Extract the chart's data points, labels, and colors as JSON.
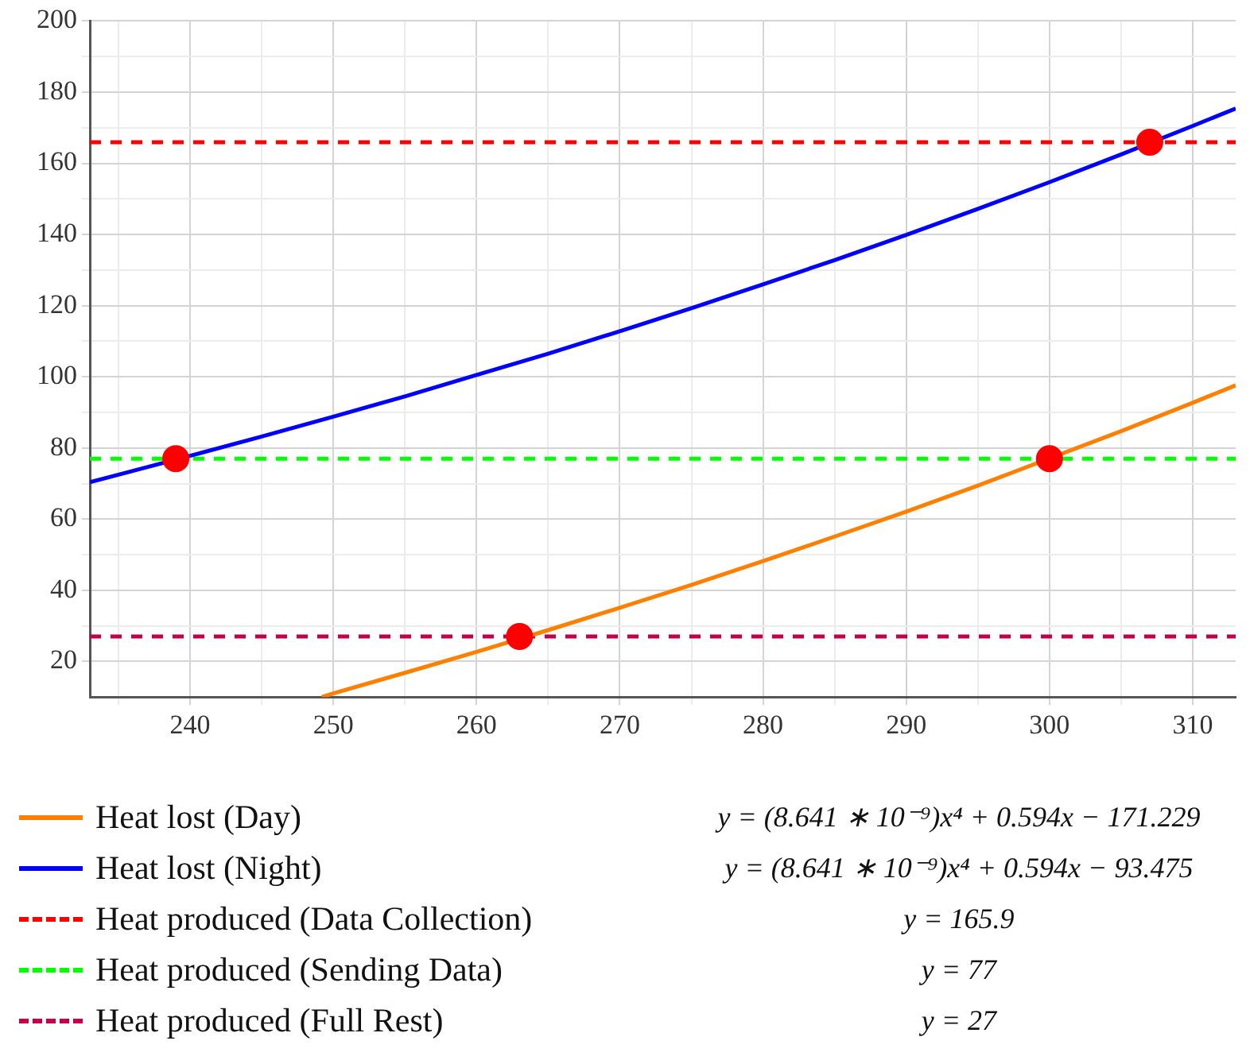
{
  "chart_data": {
    "type": "line",
    "xlim": [
      233,
      313
    ],
    "ylim": [
      10,
      200
    ],
    "xticks": [
      {
        "value": 235,
        "label": null
      },
      240,
      {
        "value": 245,
        "label": null
      },
      250,
      {
        "value": 255,
        "label": null
      },
      260,
      {
        "value": 265,
        "label": null
      },
      270,
      {
        "value": 275,
        "label": null
      },
      280,
      {
        "value": 285,
        "label": null
      },
      290,
      {
        "value": 295,
        "label": null
      },
      300,
      {
        "value": 305,
        "label": null
      },
      310
    ],
    "yticks": [
      20,
      {
        "value": 30,
        "label": null
      },
      40,
      {
        "value": 50,
        "label": null
      },
      60,
      {
        "value": 70,
        "label": null
      },
      80,
      {
        "value": 90,
        "label": null
      },
      100,
      {
        "value": 110,
        "label": null
      },
      120,
      {
        "value": 130,
        "label": null
      },
      140,
      {
        "value": 150,
        "label": null
      },
      160,
      {
        "value": 170,
        "label": null
      },
      180,
      {
        "value": 190,
        "label": null
      },
      200
    ],
    "grid": true,
    "legend": "bottom",
    "marker": "none",
    "series": [
      {
        "name": "Heat lost (Day)",
        "color": "#ff8000",
        "line_style": "solid",
        "x": [
          249.2,
          250,
          255,
          260,
          265,
          270,
          275,
          280,
          285,
          290,
          295,
          305,
          310,
          313
        ],
        "values": [
          10.0,
          11.0,
          16.8,
          22.7,
          28.8,
          35.1,
          41.5,
          48.2,
          55.1,
          62.1,
          69.4,
          84.7,
          92.7,
          97.6
        ]
      },
      {
        "name": "Heat lost (Night)",
        "color": "#0000ff",
        "line_style": "solid",
        "x": [
          233,
          235,
          240,
          245,
          250,
          255,
          260,
          265,
          270,
          275,
          280,
          285,
          290,
          295,
          300,
          305,
          310,
          313
        ],
        "values": [
          70.4,
          72.5,
          77.8,
          83.2,
          88.8,
          94.5,
          100.5,
          106.5,
          112.8,
          119.3,
          126.0,
          132.8,
          139.9,
          147.2,
          154.7,
          162.5,
          170.5,
          175.4
        ]
      },
      {
        "name": "Heat produced (Data Collection)",
        "color": "#ff0000",
        "line_style": "dashed",
        "x": [
          233,
          313
        ],
        "values": [
          165.9,
          165.9
        ]
      },
      {
        "name": "Heat produced (Sending Data)",
        "color": "#00ff00",
        "line_style": "dashed",
        "x": [
          233,
          313
        ],
        "values": [
          77,
          77
        ]
      },
      {
        "name": "Heat produced (Full Rest)",
        "color": "#c0004a",
        "line_style": "dashed",
        "x": [
          233,
          313
        ],
        "values": [
          27,
          27
        ]
      },
      {
        "type": "scatter",
        "color": "#ff0000",
        "marker": "circle",
        "x": [
          239,
          263,
          300,
          307
        ],
        "values": [
          77,
          27,
          77,
          165.9
        ]
      }
    ],
    "annotations": [
      "y = (8.641 ∗ 10⁻⁹)x⁴ + 0.594x − 171.229",
      "y = (8.641 ∗ 10⁻⁹)x⁴ + 0.594x − 93.475",
      "y = 165.9",
      "y = 77",
      "y = 27"
    ]
  }
}
